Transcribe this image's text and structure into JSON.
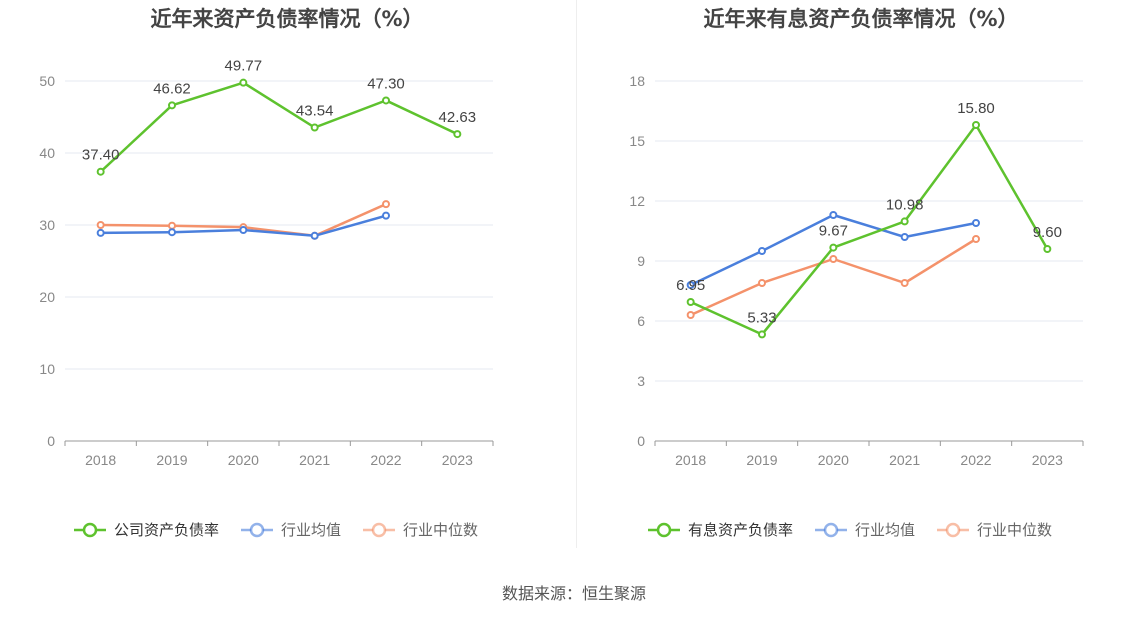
{
  "source_label": "数据来源：恒生聚源",
  "colors": {
    "company": "#5ec22e",
    "avg": "#4a7fdc",
    "median": "#f4926b",
    "grid": "#e6e8f0",
    "axis": "#999999",
    "tick": "#888888",
    "label": "#444444"
  },
  "chart_data": [
    {
      "type": "line",
      "title": "近年来资产负债率情况（%）",
      "x": [
        "2018",
        "2019",
        "2020",
        "2021",
        "2022",
        "2023"
      ],
      "ylim": [
        0,
        50
      ],
      "yticks": [
        0,
        10,
        20,
        30,
        40,
        50
      ],
      "grid": true,
      "legend_position": "bottom",
      "series": [
        {
          "name": "公司资产负债率",
          "color": "#5ec22e",
          "values": [
            37.4,
            46.62,
            49.77,
            43.54,
            47.3,
            42.63
          ],
          "labels": [
            "37.40",
            "46.62",
            "49.77",
            "43.54",
            "47.30",
            "42.63"
          ]
        },
        {
          "name": "行业均值",
          "color": "#4a7fdc",
          "values": [
            28.9,
            29.0,
            29.3,
            28.5,
            31.3,
            null
          ],
          "labels": []
        },
        {
          "name": "行业中位数",
          "color": "#f4926b",
          "values": [
            30.0,
            29.9,
            29.7,
            28.5,
            32.9,
            null
          ],
          "labels": []
        }
      ]
    },
    {
      "type": "line",
      "title": "近年来有息资产负债率情况（%）",
      "x": [
        "2018",
        "2019",
        "2020",
        "2021",
        "2022",
        "2023"
      ],
      "ylim": [
        0,
        18
      ],
      "yticks": [
        0,
        3,
        6,
        9,
        12,
        15,
        18
      ],
      "grid": true,
      "legend_position": "bottom",
      "series": [
        {
          "name": "有息资产负债率",
          "color": "#5ec22e",
          "values": [
            6.95,
            5.33,
            9.67,
            10.98,
            15.8,
            9.6
          ],
          "labels": [
            "6.95",
            "5.33",
            "9.67",
            "10.98",
            "15.80",
            "9.60"
          ]
        },
        {
          "name": "行业均值",
          "color": "#4a7fdc",
          "values": [
            7.8,
            9.5,
            11.3,
            10.2,
            10.9,
            null
          ],
          "labels": []
        },
        {
          "name": "行业中位数",
          "color": "#f4926b",
          "values": [
            6.3,
            7.9,
            9.1,
            7.9,
            10.1,
            null
          ],
          "labels": []
        }
      ]
    }
  ]
}
